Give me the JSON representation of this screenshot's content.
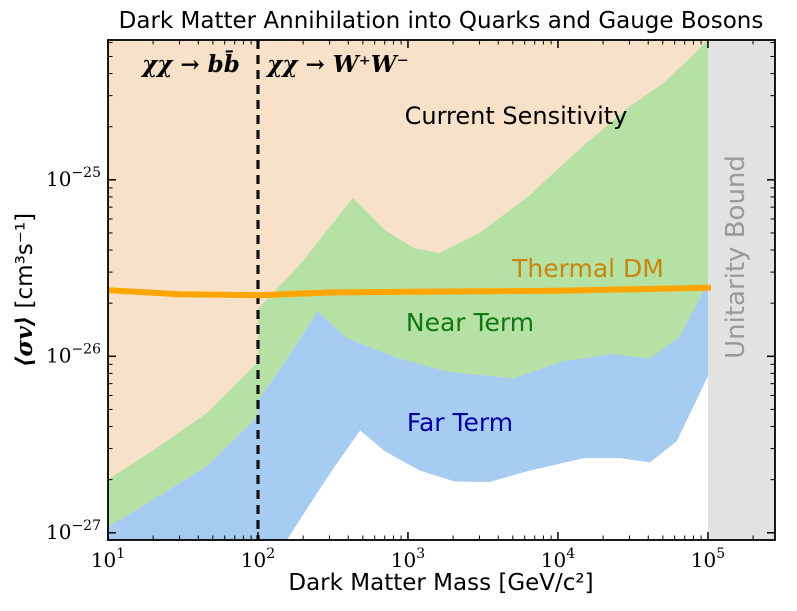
{
  "title": "Dark Matter Annihilation into Quarks and Gauge Bosons",
  "axes": {
    "x_label": "Dark Matter Mass [GeV/c²]",
    "y_label_math": "⟨σv⟩",
    "y_label_units": " [cm³s⁻¹]"
  },
  "annotations": {
    "channel_left": "χχ → bb̄",
    "channel_right": "χχ → W⁺W⁻",
    "current": "Current Sensitivity",
    "thermal": "Thermal DM",
    "near": "Near Term",
    "far": "Far Term",
    "unitarity": "Unitarity Bound"
  },
  "colors": {
    "current_fill": "#F7E2C9",
    "near_fill": "#B5E1A4",
    "far_fill": "#A7CCF2",
    "below_fill": "#FFFFFF",
    "unitarity_fill": "#E2E2E2",
    "thermal_line": "#FFA500",
    "thermal_text": "#C8860D",
    "near_text": "#117711",
    "far_text": "#0000A0",
    "unitarity_text": "#9A9A9A",
    "vline": "#111111",
    "frame": "#000000"
  },
  "chart_data": {
    "type": "area",
    "title": "Dark Matter Annihilation into Quarks and Gauge Bosons",
    "x_axis": {
      "label": "Dark Matter Mass [GeV/c²]",
      "scale": "log",
      "range": [
        10,
        280000
      ],
      "tick_exponents": [
        1,
        2,
        3,
        4,
        5
      ],
      "unit": "GeV/c^2"
    },
    "y_axis": {
      "label": "⟨σv⟩ [cm³s⁻¹]",
      "scale": "log",
      "range": [
        9.1e-28,
        6.2e-25
      ],
      "tick_exponents": [
        -25,
        -26,
        -27
      ],
      "unit": "cm^3 s^-1"
    },
    "vline_mass": 100,
    "unitarity_band_start": 100000,
    "legend_position": "none",
    "grid": false,
    "series": [
      {
        "name": "Current Sensitivity lower bound",
        "role": "upper boundary of Near Term band / bottom of Current Sensitivity shading",
        "points": [
          [
            10,
            2e-27
          ],
          [
            21.5,
            3.05e-27
          ],
          [
            46,
            4.8e-27
          ],
          [
            100,
            9.3e-27
          ],
          [
            100.01,
            1.85e-26
          ],
          [
            190,
            3.3e-26
          ],
          [
            430,
            7.9e-26
          ],
          [
            700,
            5.2e-26
          ],
          [
            1100,
            4.1e-26
          ],
          [
            1630,
            3.85e-26
          ],
          [
            3000,
            5e-26
          ],
          [
            6500,
            8.2e-26
          ],
          [
            14000,
            1.5e-25
          ],
          [
            30000,
            2.6e-25
          ],
          [
            52000,
            3.6e-25
          ],
          [
            96000,
            6e-25
          ],
          [
            120000,
            7.5e-25
          ]
        ]
      },
      {
        "name": "Near Term lower bound",
        "role": "upper boundary of Far Term band / bottom of Near Term shading",
        "points": [
          [
            10,
            1.08e-27
          ],
          [
            21.5,
            1.6e-27
          ],
          [
            46,
            2.4e-27
          ],
          [
            100,
            4.6e-27
          ],
          [
            100.01,
            5.6e-27
          ],
          [
            150,
            9.2e-27
          ],
          [
            250,
            1.8e-26
          ],
          [
            390,
            1.27e-26
          ],
          [
            845,
            9.8e-27
          ],
          [
            1820,
            8.2e-27
          ],
          [
            5000,
            7.5e-27
          ],
          [
            11000,
            9.4e-27
          ],
          [
            23000,
            1.03e-26
          ],
          [
            41000,
            9.7e-27
          ],
          [
            65000,
            1.3e-26
          ],
          [
            100000,
            2.6e-26
          ],
          [
            120000,
            5.2e-26
          ]
        ]
      },
      {
        "name": "Far Term lower bound",
        "role": "bottom of Far Term shading",
        "points": [
          [
            10,
            8.5e-28
          ],
          [
            152,
            8.8e-28
          ],
          [
            222,
            1.45e-27
          ],
          [
            327,
            2.4e-27
          ],
          [
            480,
            3.8e-27
          ],
          [
            700,
            2.9e-27
          ],
          [
            1200,
            2.25e-27
          ],
          [
            2060,
            1.95e-27
          ],
          [
            3500,
            1.94e-27
          ],
          [
            6500,
            2.25e-27
          ],
          [
            15000,
            2.65e-27
          ],
          [
            26000,
            2.65e-27
          ],
          [
            41000,
            2.5e-27
          ],
          [
            62000,
            3.3e-27
          ],
          [
            100000,
            7.7e-27
          ],
          [
            120000,
            1.4e-26
          ]
        ]
      },
      {
        "name": "Thermal DM",
        "role": "thermal relic cross-section line",
        "points": [
          [
            10,
            2.37e-26
          ],
          [
            30,
            2.25e-26
          ],
          [
            100,
            2.22e-26
          ],
          [
            300,
            2.3e-26
          ],
          [
            1000,
            2.32e-26
          ],
          [
            10000,
            2.35e-26
          ],
          [
            105000,
            2.45e-26
          ]
        ]
      }
    ]
  }
}
